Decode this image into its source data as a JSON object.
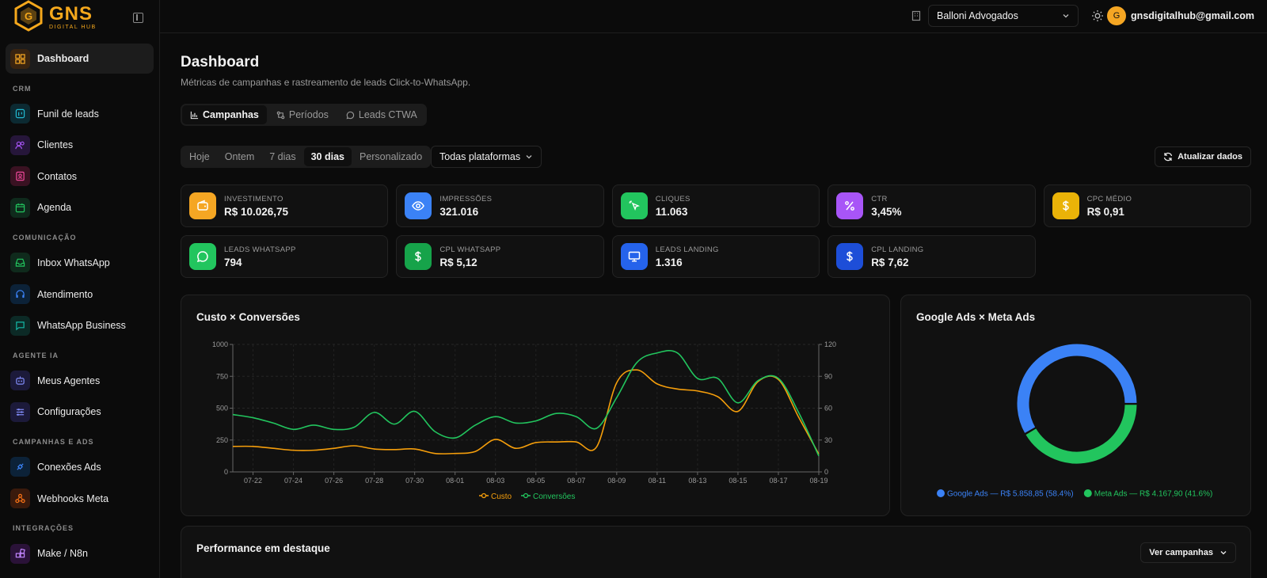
{
  "brand": {
    "name": "GNS",
    "tagline": "DIGITAL HUB"
  },
  "header": {
    "org": "Balloni Advogados",
    "avatar_initial": "G",
    "email": "gnsdigitalhub@gmail.com"
  },
  "sidebar": {
    "dashboard": "Dashboard",
    "sections": {
      "crm": "CRM",
      "comunicacao": "COMUNICAÇÃO",
      "agente": "AGENTE IA",
      "campanhas": "CAMPANHAS E ADS",
      "integracoes": "INTEGRAÇÕES"
    },
    "items": {
      "funil": "Funil de leads",
      "clientes": "Clientes",
      "contatos": "Contatos",
      "agenda": "Agenda",
      "inbox": "Inbox WhatsApp",
      "atendimento": "Atendimento",
      "business": "WhatsApp Business",
      "agentes": "Meus Agentes",
      "config": "Configurações",
      "conexoes": "Conexões Ads",
      "webhooks": "Webhooks Meta",
      "make": "Make / N8n"
    }
  },
  "page": {
    "title": "Dashboard",
    "subtitle": "Métricas de campanhas e rastreamento de leads Click-to-WhatsApp."
  },
  "tabs": [
    "Campanhas",
    "Períodos",
    "Leads CTWA"
  ],
  "ranges": [
    "Hoje",
    "Ontem",
    "7 dias",
    "30 dias",
    "Personalizado"
  ],
  "platform_select": "Todas plataformas",
  "refresh_label": "Atualizar dados",
  "kpis": [
    {
      "label": "INVESTIMENTO",
      "value": "R$ 10.026,75",
      "color": "#f5a623",
      "icon": "wallet-icon"
    },
    {
      "label": "IMPRESSÕES",
      "value": "321.016",
      "color": "#3b82f6",
      "icon": "eye-icon"
    },
    {
      "label": "CLIQUES",
      "value": "11.063",
      "color": "#22c55e",
      "icon": "pointer-icon"
    },
    {
      "label": "CTR",
      "value": "3,45%",
      "color": "#a855f7",
      "icon": "percent-icon"
    },
    {
      "label": "CPC MÉDIO",
      "value": "R$ 0,91",
      "color": "#eab308",
      "icon": "dollar-icon"
    },
    {
      "label": "LEADS WHATSAPP",
      "value": "794",
      "color": "#22c55e",
      "icon": "chat-icon"
    },
    {
      "label": "CPL WHATSAPP",
      "value": "R$ 5,12",
      "color": "#16a34a",
      "icon": "dollar-icon"
    },
    {
      "label": "LEADS LANDING",
      "value": "1.316",
      "color": "#2563eb",
      "icon": "monitor-icon"
    },
    {
      "label": "CPL LANDING",
      "value": "R$ 7,62",
      "color": "#1d4ed8",
      "icon": "dollar-icon"
    }
  ],
  "chart_title": "Custo × Conversões",
  "donut_title": "Google Ads × Meta Ads",
  "perf_title": "Performance em destaque",
  "perf_button": "Ver campanhas",
  "chart_data": [
    {
      "type": "line",
      "x": [
        "07-21",
        "07-22",
        "07-23",
        "07-24",
        "07-25",
        "07-26",
        "07-27",
        "07-28",
        "07-29",
        "07-30",
        "07-31",
        "08-01",
        "08-02",
        "08-03",
        "08-04",
        "08-05",
        "08-06",
        "08-07",
        "08-08",
        "08-09",
        "08-10",
        "08-11",
        "08-12",
        "08-13",
        "08-14",
        "08-15",
        "08-16",
        "08-17",
        "08-18",
        "08-19"
      ],
      "xticks": [
        "07-22",
        "07-24",
        "07-26",
        "07-28",
        "07-30",
        "08-01",
        "08-03",
        "08-05",
        "08-07",
        "08-09",
        "08-11",
        "08-13",
        "08-15",
        "08-17",
        "08-19"
      ],
      "y_left_ticks": [
        0,
        250,
        500,
        750,
        1000
      ],
      "y_right_ticks": [
        0,
        30,
        60,
        90,
        120
      ],
      "ylim_left": [
        0,
        1000
      ],
      "ylim_right": [
        0,
        120
      ],
      "series": [
        {
          "name": "Custo",
          "axis": "left",
          "color": "#f59e0b",
          "values": [
            200,
            200,
            185,
            170,
            170,
            185,
            205,
            180,
            175,
            180,
            145,
            145,
            160,
            255,
            185,
            230,
            235,
            235,
            195,
            700,
            800,
            690,
            650,
            635,
            590,
            475,
            710,
            725,
            430,
            140
          ]
        },
        {
          "name": "Conversões",
          "axis": "right",
          "color": "#22c55e",
          "values": [
            54,
            51,
            46,
            40,
            44,
            40,
            42,
            56,
            45,
            57,
            38,
            32,
            44,
            52,
            46,
            48,
            55,
            52,
            41,
            70,
            103,
            112,
            112,
            88,
            88,
            65,
            86,
            88,
            56,
            15
          ]
        }
      ]
    },
    {
      "type": "pie",
      "labels": [
        "Google Ads — R$ 5.858,85 (58.4%)",
        "Meta Ads — R$ 4.167,90 (41.6%)"
      ],
      "values": [
        58.4,
        41.6
      ],
      "colors": [
        "#3b82f6",
        "#22c55e"
      ]
    }
  ]
}
